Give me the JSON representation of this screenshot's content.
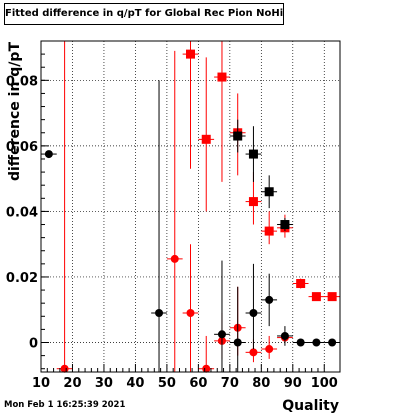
{
  "chart_data": {
    "type": "scatter",
    "title": "Fitted difference in q/pT for Global Rec Pion NoHits",
    "xlabel": "Quality",
    "ylabel": "difference in q/pT",
    "xlim": [
      10,
      105
    ],
    "ylim": [
      -0.009,
      0.092
    ],
    "grid": true,
    "xticks": [
      "10",
      "20",
      "30",
      "40",
      "50",
      "60",
      "70",
      "80",
      "90",
      "100"
    ],
    "yticks": [
      "0",
      "0.02",
      "0.04",
      "0.06",
      "0.08"
    ],
    "series": [
      {
        "color": "#ff0000",
        "marker": "square",
        "points": [
          {
            "x": 57.5,
            "y": 0.088,
            "ylo": 0.053,
            "yhi": 0.092
          },
          {
            "x": 62.5,
            "y": 0.062,
            "ylo": 0.04,
            "yhi": 0.087
          },
          {
            "x": 67.5,
            "y": 0.081,
            "ylo": 0.049,
            "yhi": 0.092
          },
          {
            "x": 72.5,
            "y": 0.064,
            "ylo": 0.051,
            "yhi": 0.076
          },
          {
            "x": 77.5,
            "y": 0.043,
            "ylo": 0.036,
            "yhi": 0.052
          },
          {
            "x": 82.5,
            "y": 0.034,
            "ylo": 0.03,
            "yhi": 0.04
          },
          {
            "x": 87.5,
            "y": 0.035,
            "ylo": 0.032,
            "yhi": 0.039
          },
          {
            "x": 92.5,
            "y": 0.018,
            "ylo": 0.0165,
            "yhi": 0.0195
          },
          {
            "x": 97.5,
            "y": 0.014,
            "ylo": 0.013,
            "yhi": 0.015
          },
          {
            "x": 102.5,
            "y": 0.014,
            "ylo": 0.013,
            "yhi": 0.015
          }
        ]
      },
      {
        "color": "#ff0000",
        "marker": "circle",
        "points": [
          {
            "x": 17.5,
            "y": -0.008,
            "ylo": -0.009,
            "yhi": 0.092
          },
          {
            "x": 52.5,
            "y": 0.0255,
            "ylo": -0.009,
            "yhi": 0.089
          },
          {
            "x": 57.5,
            "y": 0.009,
            "ylo": -0.009,
            "yhi": 0.03
          },
          {
            "x": 62.5,
            "y": -0.008,
            "ylo": -0.009,
            "yhi": 0.002
          },
          {
            "x": 67.5,
            "y": 0.0005,
            "ylo": -0.005,
            "yhi": 0.009
          },
          {
            "x": 72.5,
            "y": 0.0045,
            "ylo": -0.004,
            "yhi": 0.017
          },
          {
            "x": 77.5,
            "y": -0.003,
            "ylo": -0.006,
            "yhi": 0.001
          },
          {
            "x": 82.5,
            "y": -0.002,
            "ylo": -0.005,
            "yhi": 0.002
          },
          {
            "x": 87.5,
            "y": 0.0015,
            "ylo": 0.0,
            "yhi": 0.003
          }
        ]
      },
      {
        "color": "#000000",
        "marker": "square",
        "points": [
          {
            "x": 72.5,
            "y": 0.063,
            "ylo": 0.058,
            "yhi": 0.068
          },
          {
            "x": 77.5,
            "y": 0.0575,
            "ylo": 0.049,
            "yhi": 0.066
          },
          {
            "x": 82.5,
            "y": 0.046,
            "ylo": 0.041,
            "yhi": 0.051
          },
          {
            "x": 87.5,
            "y": 0.036,
            "ylo": 0.034,
            "yhi": 0.038
          }
        ]
      },
      {
        "color": "#000000",
        "marker": "circle",
        "points": [
          {
            "x": 12.5,
            "y": 0.0575,
            "ylo": 0.0575,
            "yhi": 0.0575
          },
          {
            "x": 47.5,
            "y": 0.009,
            "ylo": -0.009,
            "yhi": 0.08
          },
          {
            "x": 67.5,
            "y": 0.0025,
            "ylo": -0.009,
            "yhi": 0.025
          },
          {
            "x": 72.5,
            "y": 0.0,
            "ylo": -0.009,
            "yhi": 0.017
          },
          {
            "x": 77.5,
            "y": 0.009,
            "ylo": -0.002,
            "yhi": 0.024
          },
          {
            "x": 82.5,
            "y": 0.013,
            "ylo": 0.005,
            "yhi": 0.021
          },
          {
            "x": 87.5,
            "y": 0.002,
            "ylo": -0.001,
            "yhi": 0.005
          },
          {
            "x": 92.5,
            "y": 0.0,
            "ylo": -0.001,
            "yhi": 0.001
          },
          {
            "x": 97.5,
            "y": 0.0,
            "ylo": -0.001,
            "yhi": 0.001
          },
          {
            "x": 102.5,
            "y": 0.0,
            "ylo": -0.001,
            "yhi": 0.001
          }
        ]
      }
    ]
  },
  "footer": {
    "timestamp": "Mon Feb  1 16:25:39 2021"
  }
}
